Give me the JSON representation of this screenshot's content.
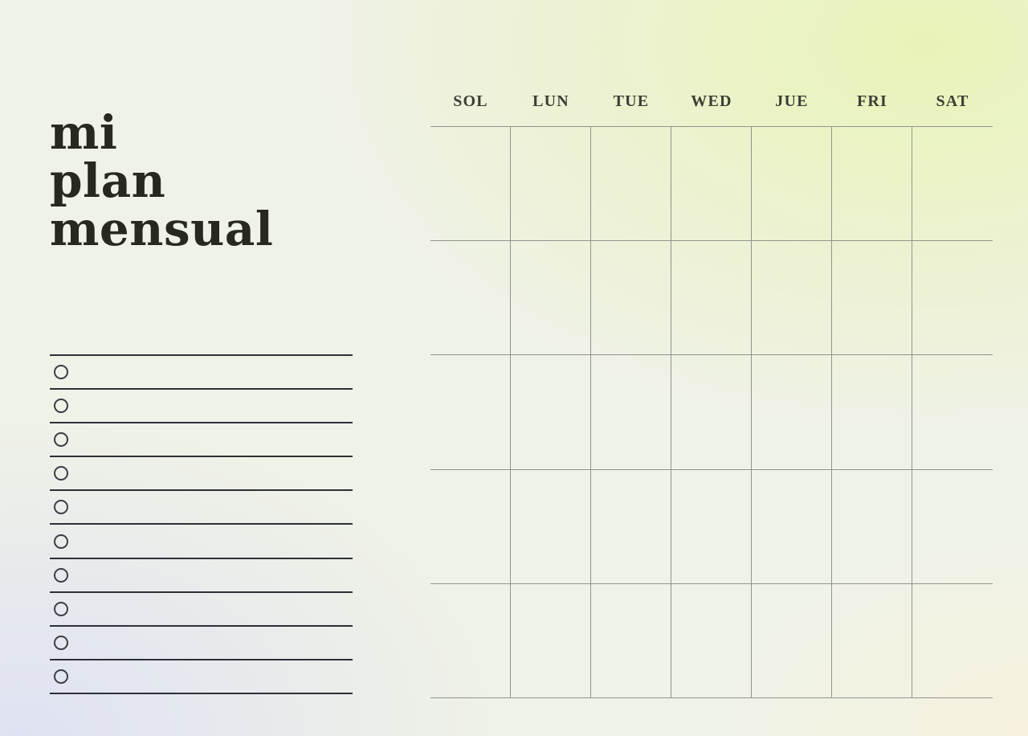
{
  "page": {
    "title_lines": [
      "mi",
      "plan",
      "mensual"
    ]
  },
  "checklist": {
    "rows": 10
  },
  "calendar": {
    "day_headers": [
      "SOL",
      "LUN",
      "TUE",
      "WED",
      "JUE",
      "FRI",
      "SAT"
    ],
    "weeks": 5,
    "days_per_week": 7
  },
  "colors": {
    "title_text": "#27291f",
    "day_header_text": "#3a3e34",
    "grid_line": "#8f948e",
    "checklist_line": "#2d3036",
    "bg_base": "#eff2e6",
    "bg_top_right": "#e9f3b8",
    "bg_bottom_left": "#dfe2f3",
    "bg_bottom_right": "#f6f1de"
  }
}
